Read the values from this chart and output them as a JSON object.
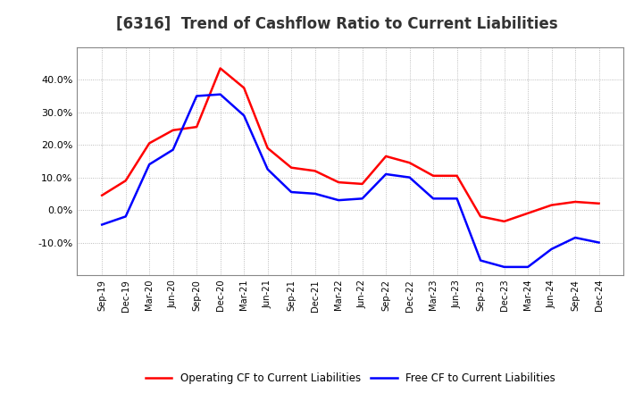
{
  "title": "[6316]  Trend of Cashflow Ratio to Current Liabilities",
  "x_labels": [
    "Sep-19",
    "Dec-19",
    "Mar-20",
    "Jun-20",
    "Sep-20",
    "Dec-20",
    "Mar-21",
    "Jun-21",
    "Sep-21",
    "Dec-21",
    "Mar-22",
    "Jun-22",
    "Sep-22",
    "Dec-22",
    "Mar-23",
    "Jun-23",
    "Sep-23",
    "Dec-23",
    "Mar-24",
    "Jun-24",
    "Sep-24",
    "Dec-24"
  ],
  "operating_cf": [
    4.5,
    9.0,
    20.5,
    24.5,
    25.5,
    43.5,
    37.5,
    19.0,
    13.0,
    12.0,
    8.5,
    8.0,
    16.5,
    14.5,
    10.5,
    10.5,
    -2.0,
    -3.5,
    -1.0,
    1.5,
    2.5,
    2.0
  ],
  "free_cf": [
    -4.5,
    -2.0,
    14.0,
    18.5,
    35.0,
    35.5,
    29.0,
    12.5,
    5.5,
    5.0,
    3.0,
    3.5,
    11.0,
    10.0,
    3.5,
    3.5,
    -15.5,
    -17.5,
    -17.5,
    -12.0,
    -8.5,
    -10.0
  ],
  "operating_color": "#FF0000",
  "free_color": "#0000FF",
  "ylim_min": -20,
  "ylim_max": 50,
  "yticks": [
    -10,
    0,
    10,
    20,
    30,
    40
  ],
  "background_color": "#FFFFFF",
  "plot_bg_color": "#FFFFFF",
  "grid_color": "#AAAAAA",
  "title_fontsize": 12,
  "legend_labels": [
    "Operating CF to Current Liabilities",
    "Free CF to Current Liabilities"
  ]
}
